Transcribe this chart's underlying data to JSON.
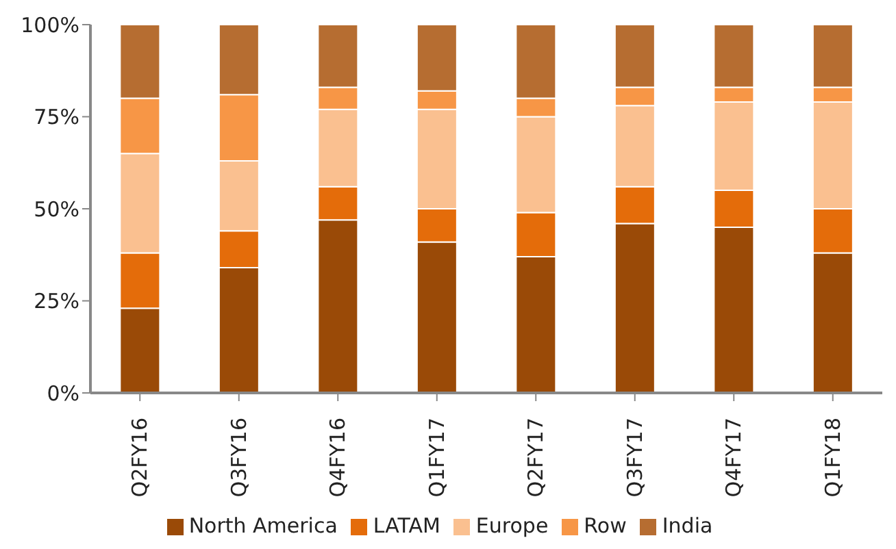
{
  "chart_data": {
    "type": "bar",
    "stacked": true,
    "categories": [
      "Q2FY16",
      "Q3FY16",
      "Q4FY16",
      "Q1FY17",
      "Q2FY17",
      "Q3FY17",
      "Q4FY17",
      "Q1FY18"
    ],
    "series": [
      {
        "name": "North America",
        "color": "#9a4a07",
        "values": [
          23,
          34,
          47,
          41,
          37,
          46,
          45,
          38
        ]
      },
      {
        "name": "LATAM",
        "color": "#e46c0a",
        "values": [
          15,
          10,
          9,
          9,
          12,
          10,
          10,
          12
        ]
      },
      {
        "name": "Europe",
        "color": "#fac090",
        "values": [
          27,
          19,
          21,
          27,
          26,
          22,
          24,
          29
        ]
      },
      {
        "name": "Row",
        "color": "#f79646",
        "values": [
          15,
          18,
          6,
          5,
          5,
          5,
          4,
          4
        ]
      },
      {
        "name": "India",
        "color": "#b66d31",
        "values": [
          20,
          19,
          17,
          18,
          20,
          17,
          17,
          17
        ]
      }
    ],
    "ylim": [
      0,
      100
    ],
    "yticks": [
      {
        "value": 0,
        "label": "0%"
      },
      {
        "value": 25,
        "label": "25%"
      },
      {
        "value": 50,
        "label": "50%"
      },
      {
        "value": 75,
        "label": "75%"
      },
      {
        "value": 100,
        "label": "100%"
      }
    ],
    "grid": false,
    "legend": "bottom"
  }
}
